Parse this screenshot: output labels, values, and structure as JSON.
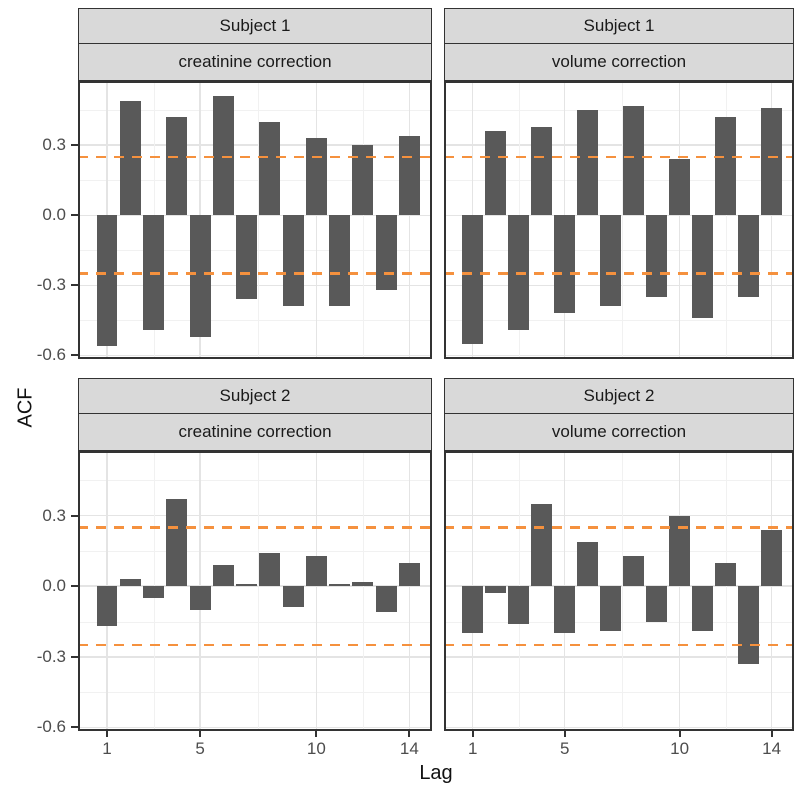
{
  "figure": {
    "ylabel": "ACF",
    "xlabel": "Lag"
  },
  "chart_data": {
    "type": "bar",
    "title": "",
    "xlabel": "Lag",
    "ylabel": "ACF",
    "x": [
      1,
      2,
      3,
      4,
      5,
      6,
      7,
      8,
      9,
      10,
      11,
      12,
      13,
      14
    ],
    "facets": [
      {
        "subject": "Subject 1",
        "correction": "creatinine correction",
        "values": [
          -0.56,
          0.49,
          -0.49,
          0.42,
          -0.52,
          0.51,
          -0.36,
          0.4,
          -0.39,
          0.33,
          -0.39,
          0.3,
          -0.32,
          0.34
        ]
      },
      {
        "subject": "Subject 1",
        "correction": "volume correction",
        "values": [
          -0.55,
          0.36,
          -0.49,
          0.38,
          -0.42,
          0.45,
          -0.39,
          0.47,
          -0.35,
          0.24,
          -0.44,
          0.42,
          -0.35,
          0.46
        ]
      },
      {
        "subject": "Subject 2",
        "correction": "creatinine correction",
        "values": [
          -0.17,
          0.03,
          -0.05,
          0.37,
          -0.1,
          0.09,
          0.01,
          0.14,
          -0.09,
          0.13,
          0.01,
          0.02,
          -0.11,
          0.1
        ]
      },
      {
        "subject": "Subject 2",
        "correction": "volume correction",
        "values": [
          -0.2,
          -0.03,
          -0.16,
          0.35,
          -0.2,
          0.19,
          -0.19,
          0.13,
          -0.15,
          0.3,
          -0.19,
          0.1,
          -0.33,
          0.24
        ]
      }
    ],
    "confidence_bounds": [
      -0.25,
      0.25
    ],
    "ylim": [
      -0.615,
      0.575
    ],
    "y_breaks": [
      0.3,
      0.0,
      -0.3,
      -0.6
    ],
    "y_tick_labels": [
      "0.3",
      "0.0",
      "-0.3",
      "-0.6"
    ],
    "y_minor_breaks": [
      0.45,
      0.15,
      -0.15,
      -0.45
    ],
    "x_breaks": [
      1,
      5,
      10,
      14
    ],
    "x_tick_labels": [
      "1",
      "5",
      "10",
      "14"
    ],
    "x_minor_breaks": [
      3,
      7.5,
      12
    ],
    "grid": true,
    "legend": "none",
    "bar_color": "#595959",
    "conf_line_color": "#F5913E",
    "strip_bg": "#D9D9D9",
    "gridline_color": "#E4E4E4",
    "panel_border_color": "#333333"
  }
}
